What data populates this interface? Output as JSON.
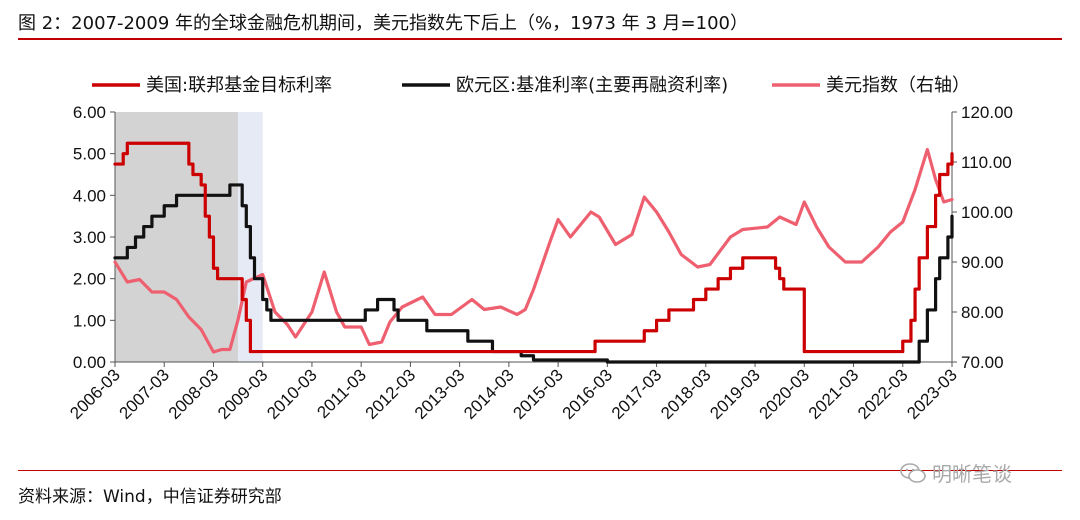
{
  "title": "图 2：2007-2009 年的全球金融危机期间，美元指数先下后上（%，1973 年 3 月=100）",
  "source": "资料来源：Wind，中信证券研究部",
  "watermark": "明晰笔谈",
  "chart_data": {
    "type": "line",
    "legend_placement": "top",
    "grid": false,
    "x_ticks": [
      "2006-03",
      "2007-03",
      "2008-03",
      "2009-03",
      "2010-03",
      "2011-03",
      "2012-03",
      "2013-03",
      "2014-03",
      "2015-03",
      "2016-03",
      "2017-03",
      "2018-03",
      "2019-03",
      "2020-03",
      "2021-03",
      "2022-03",
      "2023-03"
    ],
    "x_range": [
      "2006-03",
      "2023-03"
    ],
    "y_left": {
      "ticks": [
        "0.00",
        "1.00",
        "2.00",
        "3.00",
        "4.00",
        "5.00",
        "6.00"
      ],
      "range": [
        0,
        6
      ]
    },
    "y_right": {
      "ticks": [
        "70.00",
        "80.00",
        "90.00",
        "100.00",
        "110.00",
        "120.00"
      ],
      "range": [
        70,
        120
      ]
    },
    "shaded_periods": [
      {
        "from": "2006-03",
        "to": "2008-09",
        "color": "#d3d3d3"
      },
      {
        "from": "2008-09",
        "to": "2009-03",
        "color": "#e6eaf4"
      }
    ],
    "series": [
      {
        "name": "美国:联邦基金目标利率",
        "axis": "left",
        "color": "#cc0000",
        "step": true,
        "points": [
          [
            "2006-03",
            4.75
          ],
          [
            "2006-05",
            5.0
          ],
          [
            "2006-06",
            5.25
          ],
          [
            "2007-09",
            4.75
          ],
          [
            "2007-10",
            4.5
          ],
          [
            "2007-12",
            4.25
          ],
          [
            "2008-01",
            3.5
          ],
          [
            "2008-02",
            3.0
          ],
          [
            "2008-03",
            2.25
          ],
          [
            "2008-04",
            2.0
          ],
          [
            "2008-10",
            1.5
          ],
          [
            "2008-11",
            1.0
          ],
          [
            "2008-12",
            0.25
          ],
          [
            "2015-12",
            0.5
          ],
          [
            "2016-12",
            0.75
          ],
          [
            "2017-03",
            1.0
          ],
          [
            "2017-06",
            1.25
          ],
          [
            "2017-12",
            1.5
          ],
          [
            "2018-03",
            1.75
          ],
          [
            "2018-06",
            2.0
          ],
          [
            "2018-09",
            2.25
          ],
          [
            "2018-12",
            2.5
          ],
          [
            "2019-08",
            2.25
          ],
          [
            "2019-09",
            2.0
          ],
          [
            "2019-10",
            1.75
          ],
          [
            "2020-03",
            0.25
          ],
          [
            "2022-03",
            0.5
          ],
          [
            "2022-05",
            1.0
          ],
          [
            "2022-06",
            1.75
          ],
          [
            "2022-07",
            2.5
          ],
          [
            "2022-09",
            3.25
          ],
          [
            "2022-11",
            4.0
          ],
          [
            "2022-12",
            4.5
          ],
          [
            "2023-02",
            4.75
          ],
          [
            "2023-03",
            5.0
          ]
        ]
      },
      {
        "name": "欧元区:基准利率(主要再融资利率)",
        "axis": "left",
        "color": "#111111",
        "step": true,
        "points": [
          [
            "2006-03",
            2.5
          ],
          [
            "2006-06",
            2.75
          ],
          [
            "2006-08",
            3.0
          ],
          [
            "2006-10",
            3.25
          ],
          [
            "2006-12",
            3.5
          ],
          [
            "2007-03",
            3.75
          ],
          [
            "2007-06",
            4.0
          ],
          [
            "2008-07",
            4.25
          ],
          [
            "2008-10",
            3.75
          ],
          [
            "2008-11",
            3.25
          ],
          [
            "2008-12",
            2.5
          ],
          [
            "2009-01",
            2.0
          ],
          [
            "2009-03",
            1.5
          ],
          [
            "2009-04",
            1.25
          ],
          [
            "2009-05",
            1.0
          ],
          [
            "2011-04",
            1.25
          ],
          [
            "2011-07",
            1.5
          ],
          [
            "2011-11",
            1.25
          ],
          [
            "2011-12",
            1.0
          ],
          [
            "2012-07",
            0.75
          ],
          [
            "2013-05",
            0.5
          ],
          [
            "2013-11",
            0.25
          ],
          [
            "2014-06",
            0.15
          ],
          [
            "2014-09",
            0.05
          ],
          [
            "2016-03",
            0.0
          ],
          [
            "2022-07",
            0.5
          ],
          [
            "2022-09",
            1.25
          ],
          [
            "2022-11",
            2.0
          ],
          [
            "2022-12",
            2.5
          ],
          [
            "2023-02",
            3.0
          ],
          [
            "2023-03",
            3.5
          ]
        ]
      },
      {
        "name": "美元指数（右轴）",
        "axis": "right",
        "color": "#ee6070",
        "step": false,
        "points": [
          [
            "2006-03",
            90.0
          ],
          [
            "2006-06",
            86.0
          ],
          [
            "2006-09",
            86.5
          ],
          [
            "2006-12",
            84.0
          ],
          [
            "2007-03",
            84.0
          ],
          [
            "2007-06",
            82.5
          ],
          [
            "2007-09",
            79.0
          ],
          [
            "2007-12",
            76.5
          ],
          [
            "2008-03",
            72.0
          ],
          [
            "2008-05",
            72.5
          ],
          [
            "2008-07",
            72.5
          ],
          [
            "2008-09",
            78.5
          ],
          [
            "2008-11",
            86.0
          ],
          [
            "2009-03",
            87.5
          ],
          [
            "2009-06",
            80.0
          ],
          [
            "2009-09",
            77.5
          ],
          [
            "2009-11",
            75.0
          ],
          [
            "2010-03",
            80.0
          ],
          [
            "2010-06",
            88.0
          ],
          [
            "2010-09",
            80.0
          ],
          [
            "2010-11",
            77.0
          ],
          [
            "2011-03",
            77.0
          ],
          [
            "2011-05",
            73.5
          ],
          [
            "2011-08",
            74.0
          ],
          [
            "2011-10",
            78.0
          ],
          [
            "2012-01",
            81.0
          ],
          [
            "2012-06",
            83.0
          ],
          [
            "2012-09",
            79.5
          ],
          [
            "2013-01",
            79.5
          ],
          [
            "2013-06",
            82.5
          ],
          [
            "2013-09",
            80.5
          ],
          [
            "2014-01",
            81.0
          ],
          [
            "2014-05",
            79.5
          ],
          [
            "2014-07",
            80.5
          ],
          [
            "2014-09",
            84.5
          ],
          [
            "2015-01",
            94.0
          ],
          [
            "2015-03",
            98.5
          ],
          [
            "2015-06",
            95.0
          ],
          [
            "2015-11",
            100.0
          ],
          [
            "2016-01",
            99.0
          ],
          [
            "2016-05",
            93.5
          ],
          [
            "2016-09",
            95.5
          ],
          [
            "2016-12",
            103.0
          ],
          [
            "2017-03",
            100.0
          ],
          [
            "2017-06",
            96.0
          ],
          [
            "2017-09",
            91.5
          ],
          [
            "2018-01",
            89.0
          ],
          [
            "2018-04",
            89.5
          ],
          [
            "2018-09",
            95.0
          ],
          [
            "2018-12",
            96.5
          ],
          [
            "2019-06",
            97.0
          ],
          [
            "2019-09",
            99.0
          ],
          [
            "2020-01",
            97.5
          ],
          [
            "2020-03",
            102.0
          ],
          [
            "2020-06",
            97.0
          ],
          [
            "2020-09",
            93.0
          ],
          [
            "2021-01",
            90.0
          ],
          [
            "2021-05",
            90.0
          ],
          [
            "2021-09",
            93.0
          ],
          [
            "2021-12",
            96.0
          ],
          [
            "2022-03",
            98.0
          ],
          [
            "2022-06",
            104.5
          ],
          [
            "2022-09",
            112.5
          ],
          [
            "2022-11",
            106.5
          ],
          [
            "2023-01",
            102.0
          ],
          [
            "2023-03",
            102.5
          ]
        ]
      }
    ]
  }
}
